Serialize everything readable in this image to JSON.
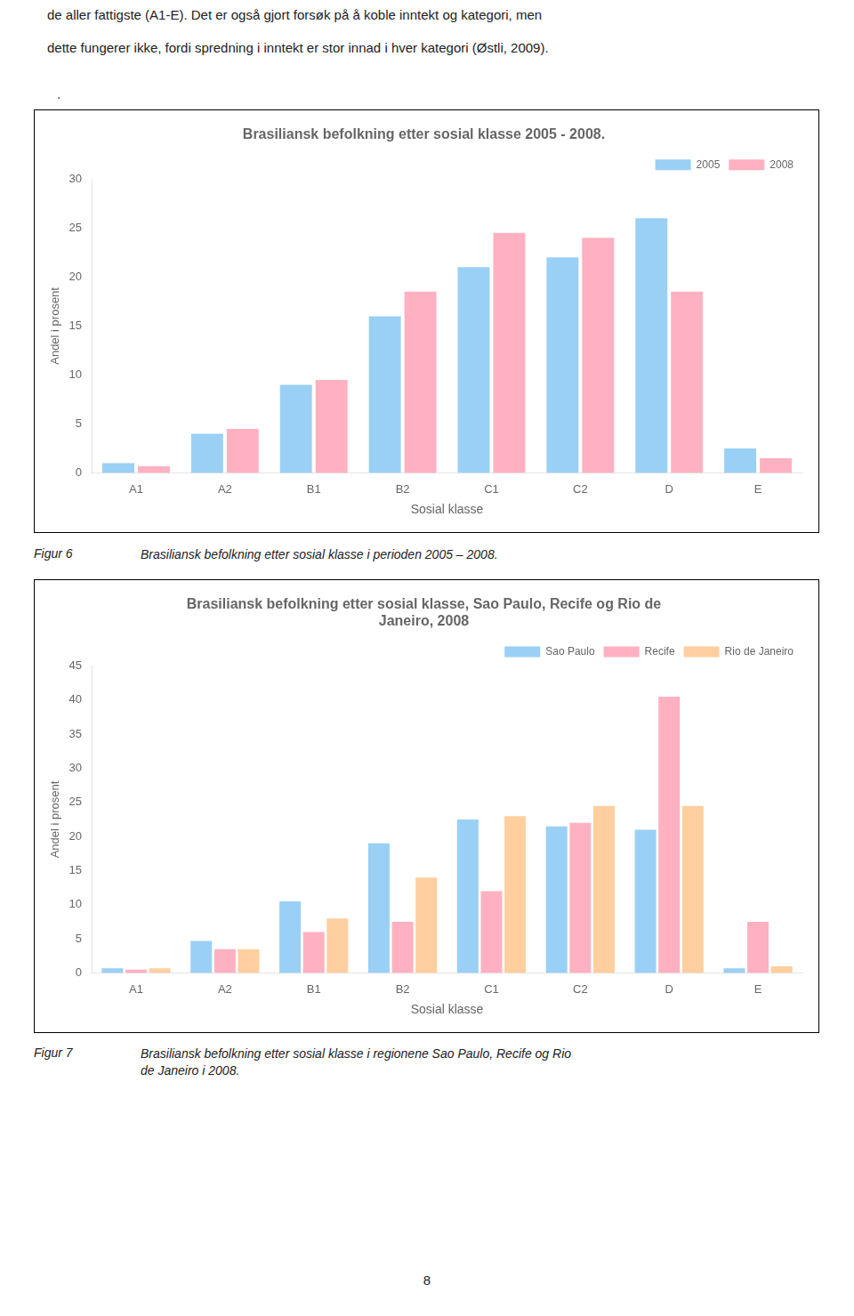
{
  "top_text": [
    "de aller fattigste (A1-E). Det er også gjort forsøk på å koble inntekt og kategori, men",
    "dette fungerer ikke, fordi spredning i inntekt er stor innad i hver kategori (Østli, 2009).",
    "."
  ],
  "captions": [
    {
      "label": "Figur 6",
      "text": "Brasiliansk befolkning etter sosial klasse i perioden 2005 – 2008."
    },
    {
      "label": "Figur 7",
      "text": "Brasiliansk befolkning etter sosial klasse i regionene Sao Paulo, Recife og Rio\nde Janeiro i 2008."
    }
  ],
  "page_number": "8",
  "chart_data": [
    {
      "type": "bar",
      "title": "Brasiliansk befolkning etter sosial klasse 2005 - 2008.",
      "xlabel": "Sosial klasse",
      "ylabel": "Andel i prosent",
      "categories": [
        "A1",
        "A2",
        "B1",
        "B2",
        "C1",
        "C2",
        "D",
        "E"
      ],
      "series": [
        {
          "name": "2005",
          "values": [
            1.0,
            4.0,
            9.0,
            16.0,
            21.0,
            22.0,
            26.0,
            2.5
          ]
        },
        {
          "name": "2008",
          "values": [
            0.7,
            4.5,
            9.5,
            18.5,
            24.5,
            24.0,
            18.5,
            1.5
          ]
        }
      ],
      "ylim": [
        0,
        30
      ],
      "yticks": [
        0,
        5,
        10,
        15,
        20,
        25,
        30
      ],
      "grid": false,
      "legend": "upper right"
    },
    {
      "type": "bar",
      "title": "Brasiliansk befolkning etter sosial klasse, Sao Paulo, Recife og Rio de\nJaneiro, 2008",
      "xlabel": "Sosial klasse",
      "ylabel": "Andel i prosent",
      "categories": [
        "A1",
        "A2",
        "B1",
        "B2",
        "C1",
        "C2",
        "D",
        "E"
      ],
      "series": [
        {
          "name": "Sao Paulo",
          "values": [
            0.7,
            4.7,
            10.5,
            19.0,
            22.5,
            21.5,
            21.0,
            0.7
          ]
        },
        {
          "name": "Recife",
          "values": [
            0.5,
            3.5,
            6.0,
            7.5,
            12.0,
            22.0,
            40.5,
            7.5
          ]
        },
        {
          "name": "Rio de Janeiro",
          "values": [
            0.7,
            3.5,
            8.0,
            14.0,
            23.0,
            24.5,
            24.5,
            1.0
          ]
        }
      ],
      "ylim": [
        0,
        45
      ],
      "yticks": [
        0,
        5,
        10,
        15,
        20,
        25,
        30,
        35,
        40,
        45
      ],
      "grid": false,
      "legend": "upper right"
    }
  ]
}
